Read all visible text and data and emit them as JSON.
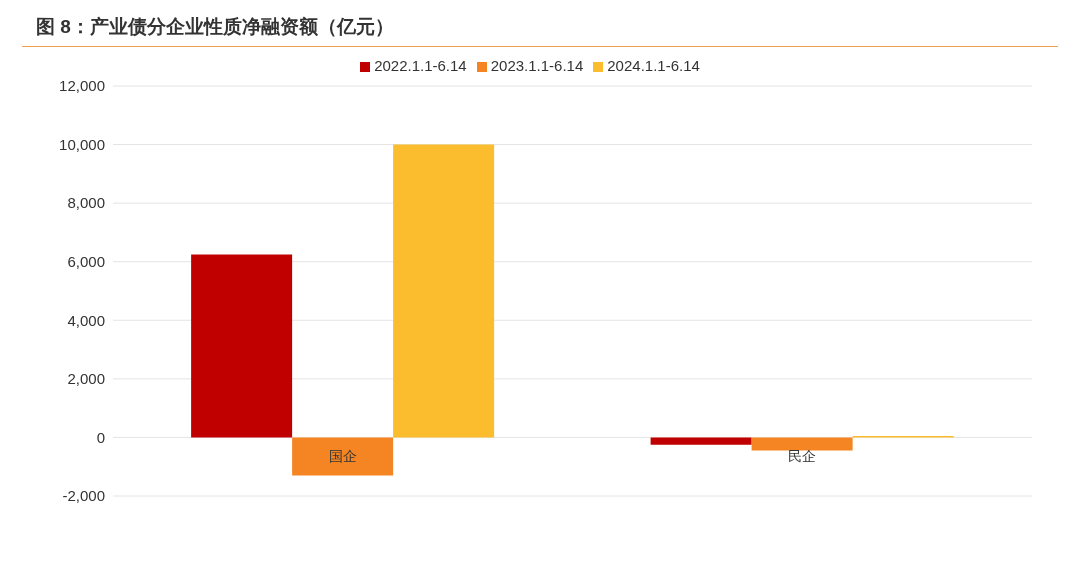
{
  "chart_data": {
    "type": "bar",
    "title": "图 8：产业债分企业性质净融资额（亿元）",
    "categories": [
      "国企",
      "民企"
    ],
    "series": [
      {
        "name": "2022.1.1-6.14",
        "color": "#c00000",
        "values": [
          6250,
          -250
        ]
      },
      {
        "name": "2023.1.1-6.14",
        "color": "#f58523",
        "values": [
          -1300,
          -450
        ]
      },
      {
        "name": "2024.1.1-6.14",
        "color": "#fbbd2e",
        "values": [
          10000,
          50
        ]
      }
    ],
    "ylim": [
      -2000,
      12000
    ],
    "yticks": [
      {
        "value": -2000,
        "label": "-2,000"
      },
      0,
      {
        "value": 2000,
        "label": "2,000"
      },
      {
        "value": 4000,
        "label": "4,000"
      },
      {
        "value": 6000,
        "label": "6,000"
      },
      {
        "value": 8000,
        "label": "8,000"
      },
      {
        "value": 10000,
        "label": "10,000"
      },
      {
        "value": 12000,
        "label": "12,000"
      }
    ],
    "grid": "y",
    "legend": "top"
  }
}
